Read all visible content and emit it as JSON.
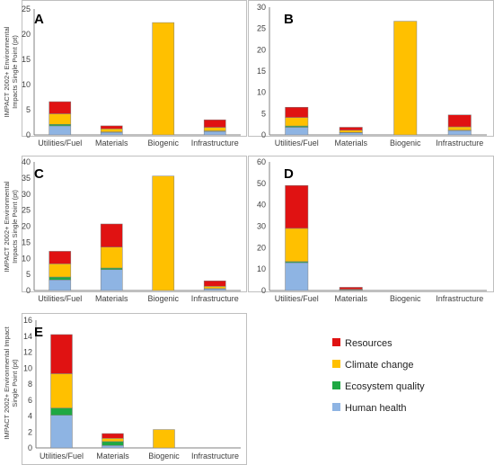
{
  "series_colors": {
    "Human health": "#8eb4e3",
    "Ecosystem quality": "#1fa843",
    "Climate change": "#ffc000",
    "Resources": "#e01212"
  },
  "chart_data": [
    {
      "panel": "A",
      "type": "bar",
      "stacked": true,
      "categories": [
        "Utilities/Fuel",
        "Materials",
        "Biogenic",
        "Infrastructure"
      ],
      "ylim": [
        0,
        25
      ],
      "yticks": [
        0,
        5,
        10,
        15,
        20,
        25
      ],
      "ylabel": [
        "IMPACT 2002+ Environmental",
        "Impacts Single Point (pt)"
      ],
      "series": [
        {
          "name": "Human health",
          "values": [
            1.8,
            0.5,
            0,
            0.7
          ]
        },
        {
          "name": "Ecosystem quality",
          "values": [
            0.3,
            0.1,
            0,
            0.1
          ]
        },
        {
          "name": "Climate change",
          "values": [
            2.1,
            0.6,
            22.3,
            0.7
          ]
        },
        {
          "name": "Resources",
          "values": [
            2.4,
            0.6,
            0,
            1.5
          ]
        }
      ]
    },
    {
      "panel": "B",
      "type": "bar",
      "stacked": true,
      "categories": [
        "Utilities/Fuel",
        "Materials",
        "Biogenic",
        "Infrastructure"
      ],
      "ylim": [
        0,
        30
      ],
      "yticks": [
        0,
        5,
        10,
        15,
        20,
        25,
        30
      ],
      "ylabel": [],
      "series": [
        {
          "name": "Human health",
          "values": [
            1.8,
            0.5,
            0,
            1.0
          ]
        },
        {
          "name": "Ecosystem quality",
          "values": [
            0.3,
            0.1,
            0,
            0.1
          ]
        },
        {
          "name": "Climate change",
          "values": [
            2.0,
            0.5,
            26.7,
            0.8
          ]
        },
        {
          "name": "Resources",
          "values": [
            2.4,
            0.7,
            0,
            2.8
          ]
        }
      ]
    },
    {
      "panel": "C",
      "type": "bar",
      "stacked": true,
      "categories": [
        "Utilities/Fuel",
        "Materials",
        "Biogenic",
        "Infrastructure"
      ],
      "ylim": [
        0,
        40
      ],
      "yticks": [
        0,
        5,
        10,
        15,
        20,
        25,
        30,
        35,
        40
      ],
      "ylabel": [
        "IMPACT 2002+ Environmental",
        "Impacts Single Point (pt)"
      ],
      "series": [
        {
          "name": "Human health",
          "values": [
            3.3,
            6.5,
            0,
            0.5
          ]
        },
        {
          "name": "Ecosystem quality",
          "values": [
            0.9,
            0.5,
            0,
            0.1
          ]
        },
        {
          "name": "Climate change",
          "values": [
            4.1,
            6.5,
            35.6,
            0.7
          ]
        },
        {
          "name": "Resources",
          "values": [
            3.9,
            7.2,
            0,
            1.7
          ]
        }
      ]
    },
    {
      "panel": "D",
      "type": "bar",
      "stacked": true,
      "categories": [
        "Utilities/Fuel",
        "Materials",
        "Biogenic",
        "Infrastructure"
      ],
      "ylim": [
        0,
        60
      ],
      "yticks": [
        0,
        10,
        20,
        30,
        40,
        50,
        60
      ],
      "ylabel": [],
      "series": [
        {
          "name": "Human health",
          "values": [
            13.0,
            0.2,
            0,
            0
          ]
        },
        {
          "name": "Ecosystem quality",
          "values": [
            0.5,
            0.1,
            0,
            0
          ]
        },
        {
          "name": "Climate change",
          "values": [
            15.5,
            0.3,
            0,
            0
          ]
        },
        {
          "name": "Resources",
          "values": [
            20.0,
            0.9,
            0,
            0
          ]
        }
      ]
    },
    {
      "panel": "E",
      "type": "bar",
      "stacked": true,
      "categories": [
        "Utilities/Fuel",
        "Materials",
        "Biogenic",
        "Infrastructure"
      ],
      "ylim": [
        0,
        16
      ],
      "yticks": [
        0,
        2,
        4,
        6,
        8,
        10,
        12,
        14,
        16
      ],
      "ylabel": [
        "IMPACT 2002+ Environmental Impact",
        "Single Point (pt)"
      ],
      "series": [
        {
          "name": "Human health",
          "values": [
            4.1,
            0.3,
            0,
            0
          ]
        },
        {
          "name": "Ecosystem quality",
          "values": [
            0.9,
            0.5,
            0,
            0
          ]
        },
        {
          "name": "Climate change",
          "values": [
            4.3,
            0.4,
            2.3,
            0
          ]
        },
        {
          "name": "Resources",
          "values": [
            4.9,
            0.6,
            0,
            0
          ]
        }
      ]
    }
  ],
  "legend": {
    "placement": "bottom-right",
    "items": [
      {
        "label": "Resources",
        "series": "Resources"
      },
      {
        "label": "Climate change",
        "series": "Climate change"
      },
      {
        "label": "Ecosystem quality",
        "series": "Ecosystem quality"
      },
      {
        "label": "Human health",
        "series": "Human health"
      }
    ]
  }
}
